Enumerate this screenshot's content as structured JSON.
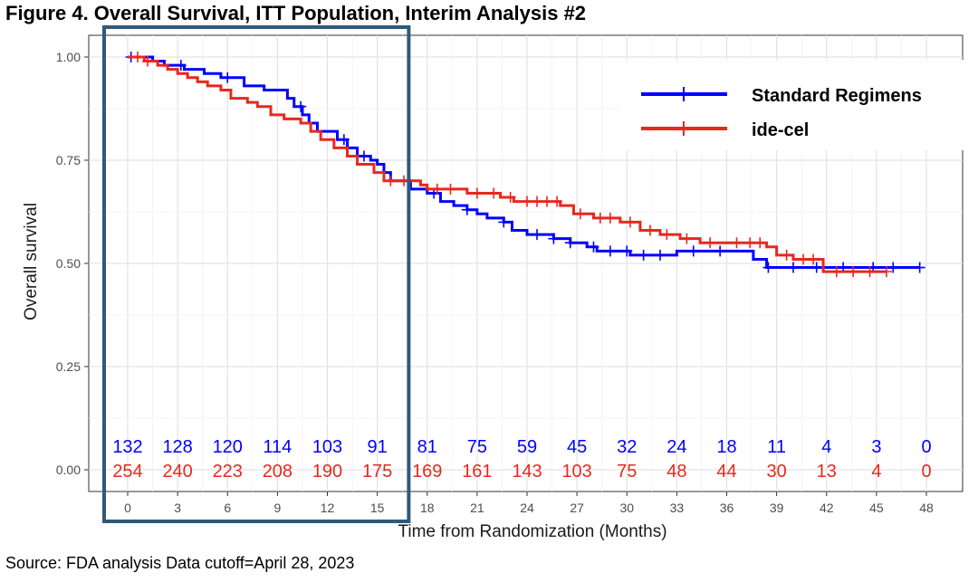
{
  "figure_title": "Figure 4. Overall Survival, ITT Population, Interim Analysis #2",
  "source_note": "Source: FDA analysis Data cutoff=April 28, 2023",
  "chart_data": {
    "type": "line",
    "subtype": "kaplan-meier",
    "title": "Figure 4. Overall Survival, ITT Population, Interim Analysis #2",
    "xlabel": "Time from Randomization (Months)",
    "ylabel": "Overall survival",
    "xlim": [
      0,
      48
    ],
    "ylim": [
      0,
      1
    ],
    "x_ticks": [
      0,
      3,
      6,
      9,
      12,
      15,
      18,
      21,
      24,
      27,
      30,
      33,
      36,
      39,
      42,
      45,
      48
    ],
    "y_ticks": [
      "0.00",
      "0.25",
      "0.50",
      "0.75",
      "1.00"
    ],
    "y_tick_values": [
      0,
      0.25,
      0.5,
      0.75,
      1.0
    ],
    "grid": true,
    "legend_position": "top-right",
    "highlight_box_x_range": [
      0,
      17
    ],
    "series": [
      {
        "name": "Standard Regimens",
        "color": "#0000ff",
        "steps": [
          [
            0,
            1.0
          ],
          [
            1.5,
            0.99
          ],
          [
            2.2,
            0.98
          ],
          [
            3.4,
            0.97
          ],
          [
            4.6,
            0.96
          ],
          [
            5.6,
            0.95
          ],
          [
            7.0,
            0.93
          ],
          [
            8.2,
            0.92
          ],
          [
            9.6,
            0.9
          ],
          [
            10.0,
            0.88
          ],
          [
            10.5,
            0.86
          ],
          [
            10.9,
            0.84
          ],
          [
            11.4,
            0.82
          ],
          [
            12.6,
            0.8
          ],
          [
            13.2,
            0.78
          ],
          [
            13.8,
            0.76
          ],
          [
            14.6,
            0.75
          ],
          [
            15.0,
            0.74
          ],
          [
            15.4,
            0.72
          ],
          [
            15.8,
            0.7
          ],
          [
            17.0,
            0.68
          ],
          [
            18.0,
            0.67
          ],
          [
            18.8,
            0.65
          ],
          [
            19.6,
            0.64
          ],
          [
            20.4,
            0.63
          ],
          [
            21.0,
            0.62
          ],
          [
            21.6,
            0.61
          ],
          [
            22.6,
            0.6
          ],
          [
            23.1,
            0.58
          ],
          [
            24.0,
            0.57
          ],
          [
            25.6,
            0.56
          ],
          [
            26.6,
            0.55
          ],
          [
            27.6,
            0.54
          ],
          [
            28.2,
            0.53
          ],
          [
            30.2,
            0.52
          ],
          [
            33.0,
            0.53
          ],
          [
            37.6,
            0.51
          ],
          [
            38.4,
            0.49
          ],
          [
            47.6,
            0.49
          ]
        ],
        "censor_x": [
          0.2,
          3.2,
          6.0,
          10.4,
          13.0,
          14.2,
          18.4,
          20.4,
          22.6,
          24.6,
          25.6,
          26.6,
          28.0,
          29.0,
          30.0,
          31.0,
          32.0,
          34.0,
          35.6,
          38.5,
          40.0,
          41.4,
          43.0,
          44.8,
          46.0,
          47.6
        ],
        "at_risk": [
          132,
          128,
          120,
          114,
          103,
          91,
          81,
          75,
          59,
          45,
          32,
          24,
          18,
          11,
          4,
          3,
          0
        ]
      },
      {
        "name": "ide-cel",
        "color": "#e8281e",
        "steps": [
          [
            0,
            1.0
          ],
          [
            1.0,
            0.99
          ],
          [
            1.8,
            0.98
          ],
          [
            2.4,
            0.97
          ],
          [
            3.0,
            0.96
          ],
          [
            3.6,
            0.95
          ],
          [
            4.2,
            0.94
          ],
          [
            4.8,
            0.93
          ],
          [
            5.6,
            0.92
          ],
          [
            6.2,
            0.9
          ],
          [
            7.2,
            0.89
          ],
          [
            7.8,
            0.88
          ],
          [
            8.6,
            0.86
          ],
          [
            9.4,
            0.85
          ],
          [
            10.4,
            0.84
          ],
          [
            11.0,
            0.82
          ],
          [
            11.6,
            0.8
          ],
          [
            12.4,
            0.78
          ],
          [
            13.2,
            0.76
          ],
          [
            13.8,
            0.74
          ],
          [
            14.8,
            0.72
          ],
          [
            15.4,
            0.7
          ],
          [
            17.6,
            0.69
          ],
          [
            18.0,
            0.68
          ],
          [
            20.4,
            0.67
          ],
          [
            22.4,
            0.66
          ],
          [
            23.2,
            0.65
          ],
          [
            26.0,
            0.64
          ],
          [
            26.8,
            0.62
          ],
          [
            28.0,
            0.61
          ],
          [
            29.6,
            0.6
          ],
          [
            30.8,
            0.58
          ],
          [
            32.0,
            0.57
          ],
          [
            33.2,
            0.56
          ],
          [
            34.4,
            0.55
          ],
          [
            37.0,
            0.55
          ],
          [
            38.4,
            0.54
          ],
          [
            39.0,
            0.52
          ],
          [
            40.0,
            0.51
          ],
          [
            41.8,
            0.48
          ],
          [
            45.6,
            0.48
          ]
        ],
        "censor_x": [
          0.6,
          1.2,
          15.8,
          16.6,
          18.6,
          19.4,
          21.0,
          22.0,
          23.0,
          24.0,
          24.6,
          25.2,
          25.8,
          27.2,
          28.4,
          29.0,
          30.2,
          31.4,
          32.4,
          33.6,
          35.0,
          36.6,
          37.4,
          38.0,
          39.6,
          40.6,
          41.2,
          42.6,
          43.6,
          44.6,
          45.6
        ],
        "at_risk": [
          254,
          240,
          223,
          208,
          190,
          175,
          169,
          161,
          143,
          103,
          75,
          48,
          44,
          30,
          13,
          4,
          0
        ]
      }
    ]
  }
}
